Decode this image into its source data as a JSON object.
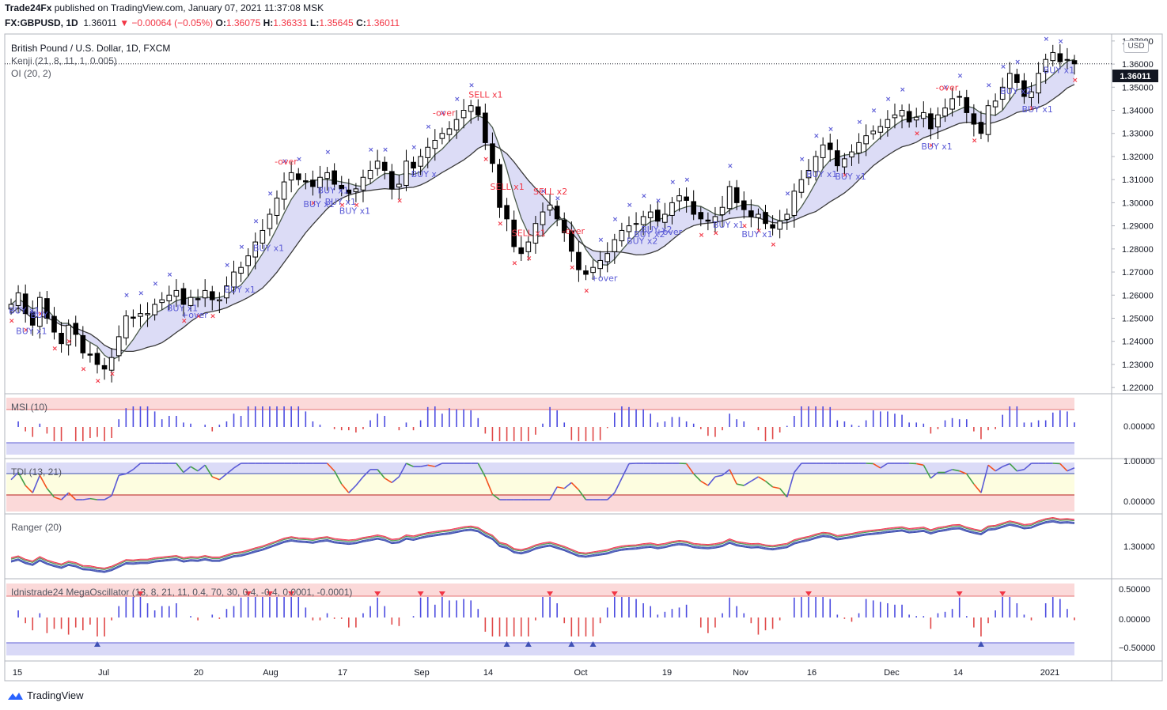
{
  "header": {
    "publisher": "Trade24Fx",
    "published_text": " published on TradingView.com, January 07, 2021 11:37:08 MSK",
    "symbol": "FX:GBPUSD, 1D",
    "last": "1.36011",
    "change": "▼ −0.00064 (−0.05%)",
    "o_label": "O:",
    "o": "1.36075",
    "h_label": "H:",
    "h": "1.36331",
    "l_label": "L:",
    "l": "1.35645",
    "c_label": "C:",
    "c": "1.36011"
  },
  "legends": {
    "main": "British Pound / U.S. Dollar, 1D, FXCM",
    "kenji": "Kenji (21, 8, 11, 1, 0.005)",
    "oi": "OI (20, 2)",
    "msi": "MSI (10)",
    "tdi": "TDI (13, 21)",
    "ranger": "Ranger (20)",
    "mega": "Idnistrade24 MegaOscillator (13, 8, 21, 11, 0.4, 70, 30, 0.4, -0.4, 0.0001, -0.0001)"
  },
  "currency_button": "USD",
  "price_badge": "1.36011",
  "footer": {
    "brand": "TradingView"
  },
  "colors": {
    "up_candle": "#ffffff",
    "down_candle": "#000000",
    "signal_blue": "#5b5bd6",
    "signal_red": "#f23645",
    "band_fill": "#d6d6f5",
    "band_fill_red": "#f8d7d7",
    "band_fill_green": "#dcefd9",
    "hist_blue": "#4b4be0",
    "hist_red": "#e04848",
    "hist_green": "#4caf50"
  },
  "chart_data": {
    "type": "candlestick",
    "symbol": "GBPUSD",
    "timeframe": "1D",
    "x_tick_labels": [
      "15",
      "Jul",
      "20",
      "Aug",
      "17",
      "Sep",
      "14",
      "Oct",
      "19",
      "Nov",
      "16",
      "Dec",
      "14",
      "2021"
    ],
    "y_tick_labels": [
      "1.37000",
      "1.36000",
      "1.35000",
      "1.34000",
      "1.33000",
      "1.32000",
      "1.31000",
      "1.30000",
      "1.29000",
      "1.28000",
      "1.27000",
      "1.26000",
      "1.25000",
      "1.24000",
      "1.23000",
      "1.22000"
    ],
    "ylim": [
      1.218,
      1.372
    ],
    "close_path": [
      1.256,
      1.261,
      1.252,
      1.247,
      1.259,
      1.25,
      1.244,
      1.239,
      1.247,
      1.243,
      1.235,
      1.234,
      1.23,
      1.228,
      1.233,
      1.242,
      1.251,
      1.25,
      1.252,
      1.252,
      1.256,
      1.258,
      1.26,
      1.262,
      1.256,
      1.259,
      1.258,
      1.262,
      1.258,
      1.258,
      1.264,
      1.27,
      1.272,
      1.277,
      1.283,
      1.288,
      1.295,
      1.302,
      1.309,
      1.313,
      1.31,
      1.309,
      1.307,
      1.311,
      1.313,
      1.308,
      1.306,
      1.304,
      1.306,
      1.311,
      1.314,
      1.318,
      1.314,
      1.306,
      1.308,
      1.318,
      1.315,
      1.32,
      1.324,
      1.327,
      1.33,
      1.332,
      1.336,
      1.34,
      1.342,
      1.338,
      1.326,
      1.317,
      1.298,
      1.293,
      1.281,
      1.278,
      1.283,
      1.291,
      1.296,
      1.299,
      1.293,
      1.287,
      1.279,
      1.271,
      1.269,
      1.272,
      1.275,
      1.278,
      1.284,
      1.288,
      1.29,
      1.291,
      1.294,
      1.296,
      1.292,
      1.295,
      1.3,
      1.303,
      1.301,
      1.295,
      1.293,
      1.292,
      1.294,
      1.298,
      1.307,
      1.3,
      1.297,
      1.294,
      1.295,
      1.291,
      1.289,
      1.292,
      1.295,
      1.305,
      1.31,
      1.314,
      1.32,
      1.325,
      1.323,
      1.316,
      1.319,
      1.322,
      1.326,
      1.329,
      1.331,
      1.333,
      1.336,
      1.338,
      1.34,
      1.335,
      1.337,
      1.339,
      1.332,
      1.338,
      1.341,
      1.345,
      1.346,
      1.339,
      1.334,
      1.33,
      1.342,
      1.344,
      1.35,
      1.356,
      1.352,
      1.346,
      1.348,
      1.356,
      1.362,
      1.365,
      1.361,
      1.362,
      1.3601
    ],
    "indicators": [
      {
        "name": "Kenji",
        "params": "21, 8, 11, 1, 0.005"
      },
      {
        "name": "OI",
        "params": "20, 2"
      },
      {
        "name": "MSI",
        "params": "10",
        "y_tick_labels": [
          "0.00000"
        ]
      },
      {
        "name": "TDI",
        "params": "13, 21",
        "y_tick_labels": [
          "1.00000",
          "0.00000"
        ]
      },
      {
        "name": "Ranger",
        "params": "20",
        "y_tick_labels": [
          "1.30000"
        ]
      },
      {
        "name": "Idnistrade24 MegaOscillator",
        "params": "13, 8, 21, 11, 0.4, 70, 30, 0.4, -0.4, 0.0001, -0.0001",
        "y_tick_labels": [
          "0.50000",
          "0.00000",
          "−0.50000"
        ]
      }
    ],
    "signal_labels": [
      "BUY x1",
      "BUY x1",
      "BUY",
      "BUY x1",
      "+over",
      "BUY x1",
      "-over",
      "BUY x1",
      "BUY x1",
      "BUY x1",
      "BUY x1",
      "BUY x1",
      "BUY x",
      "-over",
      "SELL x1",
      "SELL x1",
      "SELL x2",
      "SELL x1",
      "+over",
      "BUY x2",
      "-over",
      "BUY x2",
      "BUY x2",
      "BUY x1",
      "BUY x1",
      "BUY x1",
      "BUY x1",
      "+over",
      "-over",
      "BUY x1",
      "BUY x2",
      "BUY x1",
      "BUY x1"
    ]
  }
}
